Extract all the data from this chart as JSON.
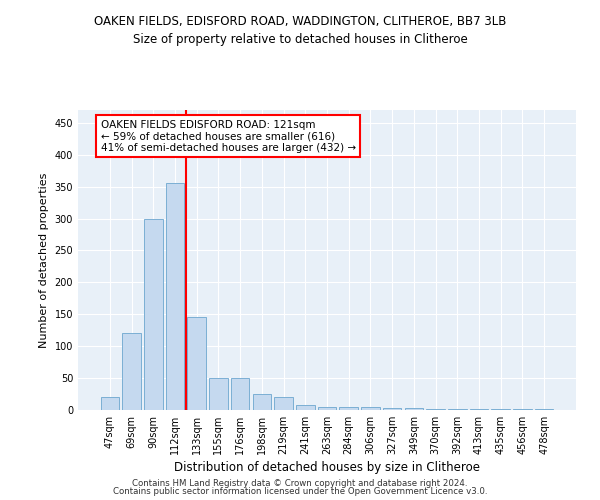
{
  "title1": "OAKEN FIELDS, EDISFORD ROAD, WADDINGTON, CLITHEROE, BB7 3LB",
  "title2": "Size of property relative to detached houses in Clitheroe",
  "xlabel": "Distribution of detached houses by size in Clitheroe",
  "ylabel": "Number of detached properties",
  "categories": [
    "47sqm",
    "69sqm",
    "90sqm",
    "112sqm",
    "133sqm",
    "155sqm",
    "176sqm",
    "198sqm",
    "219sqm",
    "241sqm",
    "263sqm",
    "284sqm",
    "306sqm",
    "327sqm",
    "349sqm",
    "370sqm",
    "392sqm",
    "413sqm",
    "435sqm",
    "456sqm",
    "478sqm"
  ],
  "values": [
    20,
    120,
    300,
    355,
    145,
    50,
    50,
    25,
    20,
    8,
    5,
    5,
    5,
    3,
    3,
    1,
    1,
    1,
    1,
    1,
    1
  ],
  "bar_color": "#c5d9ef",
  "bar_edge_color": "#7bafd4",
  "red_line_x": 3.5,
  "annotation_line1": "OAKEN FIELDS EDISFORD ROAD: 121sqm",
  "annotation_line2": "← 59% of detached houses are smaller (616)",
  "annotation_line3": "41% of semi-detached houses are larger (432) →",
  "ylim": [
    0,
    470
  ],
  "yticks": [
    0,
    50,
    100,
    150,
    200,
    250,
    300,
    350,
    400,
    450
  ],
  "background_color": "#e8f0f8",
  "footer1": "Contains HM Land Registry data © Crown copyright and database right 2024.",
  "footer2": "Contains public sector information licensed under the Open Government Licence v3.0."
}
